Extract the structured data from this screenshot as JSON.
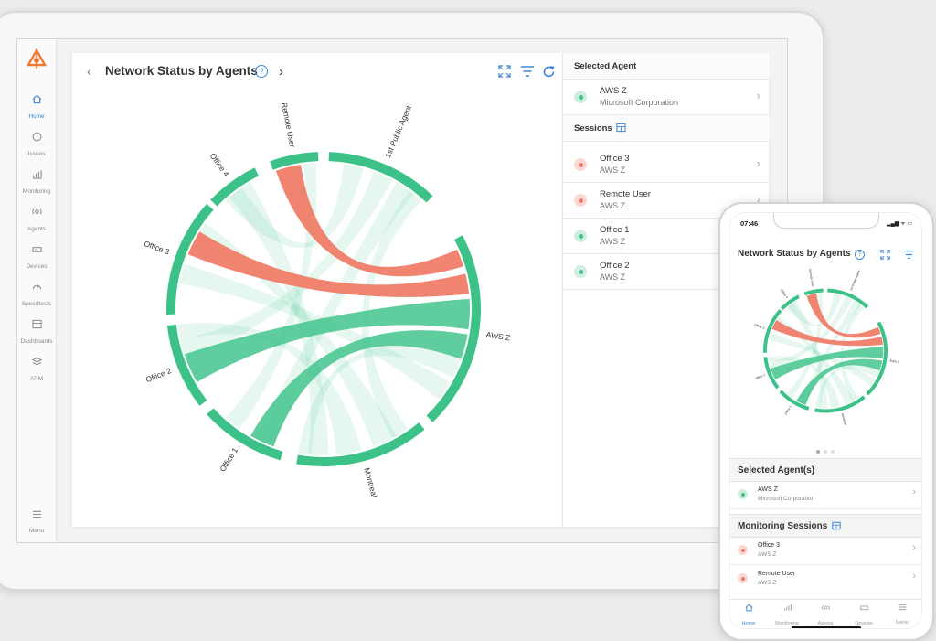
{
  "colors": {
    "green": "#3cc289",
    "red": "#f07a64",
    "accent": "#3c86d6"
  },
  "sidebar": {
    "items": [
      {
        "label": "Home",
        "icon": "home-icon"
      },
      {
        "label": "Issues",
        "icon": "alert-icon"
      },
      {
        "label": "Monitoring",
        "icon": "bar-chart-icon"
      },
      {
        "label": "Agents",
        "icon": "agent-icon"
      },
      {
        "label": "Devices",
        "icon": "device-icon"
      },
      {
        "label": "Speedtests",
        "icon": "gauge-icon"
      },
      {
        "label": "Dashboards",
        "icon": "dashboard-icon"
      },
      {
        "label": "APM",
        "icon": "layers-icon"
      }
    ],
    "menu_label": "Menu"
  },
  "panel": {
    "title": "Network Status by Agents",
    "help": "?",
    "selected_agent_heading": "Selected Agent",
    "selected_agent": {
      "name": "AWS Z",
      "org": "Microsoft Corporation"
    },
    "sessions_heading": "Sessions",
    "sessions": [
      {
        "name": "Office 3",
        "target": "AWS Z",
        "status": "red"
      },
      {
        "name": "Remote User",
        "target": "AWS Z",
        "status": "red"
      },
      {
        "name": "Office 1",
        "target": "AWS Z",
        "status": "green"
      },
      {
        "name": "Office 2",
        "target": "AWS Z",
        "status": "green"
      }
    ]
  },
  "chord": {
    "nodes": [
      "Remote User",
      "1st Public Agent",
      "AWS Z",
      "Montreal",
      "Office 1",
      "Office 2",
      "Office 3",
      "Office 4"
    ],
    "highlighted_links": [
      {
        "from": "Office 3",
        "to": "AWS Z",
        "status": "red"
      },
      {
        "from": "Remote User",
        "to": "AWS Z",
        "status": "red"
      },
      {
        "from": "Office 2",
        "to": "AWS Z",
        "status": "green"
      },
      {
        "from": "Office 1",
        "to": "AWS Z",
        "status": "green"
      }
    ]
  },
  "phone": {
    "time": "07:46",
    "status_icons": "▂▄▆ ᯤ ▭",
    "title": "Network Status by Agents",
    "help": "?",
    "selected_heading": "Selected Agent(s)",
    "selected_agent": {
      "name": "AWS Z",
      "org": "Microsoft Corporation"
    },
    "sessions_heading": "Monitoring Sessions",
    "sessions": [
      {
        "name": "Office 3",
        "target": "AWS Z",
        "status": "red"
      },
      {
        "name": "Remote User",
        "target": "AWS Z",
        "status": "red"
      }
    ],
    "tabs": [
      "Home",
      "Monitoring",
      "Agents",
      "Devices",
      "Menu"
    ]
  }
}
